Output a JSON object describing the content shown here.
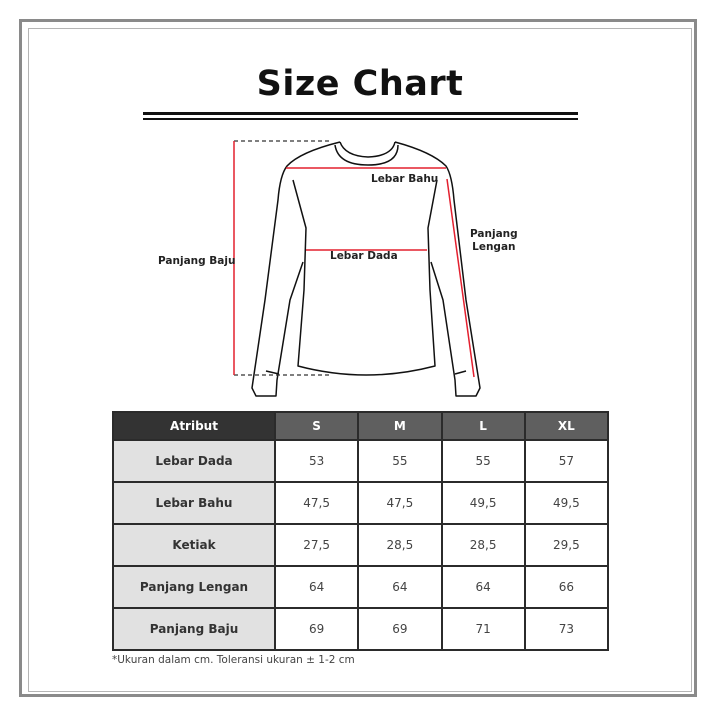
{
  "title": "Size Chart",
  "diagram_labels": {
    "panjang_baju": "Panjang Baju",
    "lebar_bahu": "Lebar Bahu",
    "lebar_dada": "Lebar Dada",
    "panjang_lengan_1": "Panjang",
    "panjang_lengan_2": "Lengan"
  },
  "colors": {
    "measure_line": "#e3202f",
    "header_dark": "#333333",
    "header": "#5f5f5f",
    "attr_bg": "#e1e1e1"
  },
  "table": {
    "headers": [
      "Atribut",
      "S",
      "M",
      "L",
      "XL"
    ],
    "rows": [
      {
        "label": "Lebar Dada",
        "values": [
          "53",
          "55",
          "55",
          "57"
        ]
      },
      {
        "label": "Lebar Bahu",
        "values": [
          "47,5",
          "47,5",
          "49,5",
          "49,5"
        ]
      },
      {
        "label": "Ketiak",
        "values": [
          "27,5",
          "28,5",
          "28,5",
          "29,5"
        ]
      },
      {
        "label": "Panjang Lengan",
        "values": [
          "64",
          "64",
          "64",
          "66"
        ]
      },
      {
        "label": "Panjang Baju",
        "values": [
          "69",
          "69",
          "71",
          "73"
        ]
      }
    ]
  },
  "note": "*Ukuran dalam cm. Toleransi ukuran ± 1-2 cm"
}
